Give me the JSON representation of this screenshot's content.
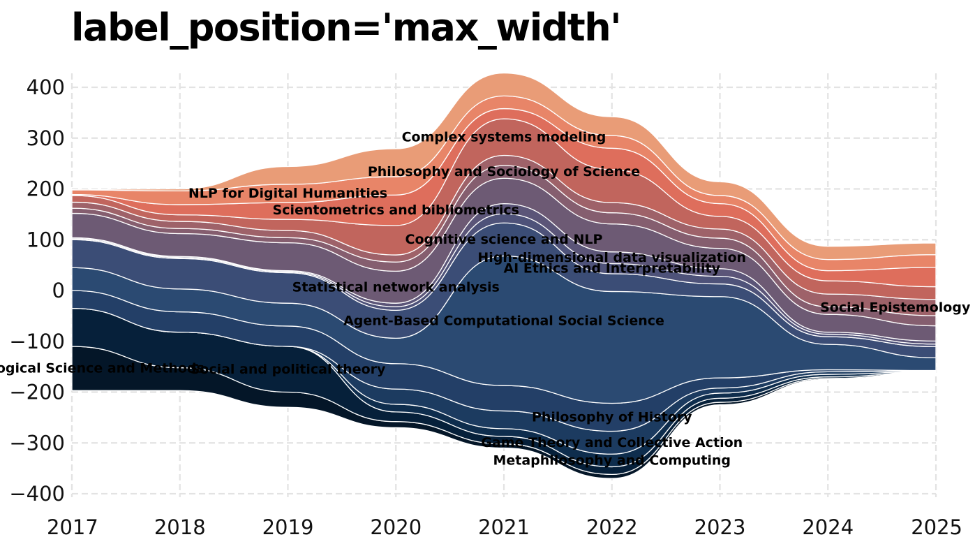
{
  "title": "label_position='max_width'",
  "chart_data": {
    "type": "area",
    "subtype": "streamgraph",
    "title": "label_position='max_width'",
    "x": [
      2017,
      2018,
      2019,
      2020,
      2021,
      2022,
      2023,
      2024,
      2025
    ],
    "xlim": [
      2017,
      2025
    ],
    "ylim": [
      -420,
      420
    ],
    "y_ticks": [
      -400,
      -300,
      -200,
      -100,
      0,
      100,
      200,
      300,
      400
    ],
    "grid": true,
    "grid_style": "dashed",
    "baseline": [
      -197,
      -197,
      -230,
      -270,
      -310,
      -370,
      -225,
      -175,
      -162
    ],
    "series": [
      {
        "name": "Psychological Science and Methods",
        "values": [
          87,
          45,
          30,
          12,
          8,
          8,
          5,
          2,
          1
        ],
        "color": "#041628"
      },
      {
        "name": "Social and political theory",
        "values": [
          75,
          70,
          90,
          19,
          15,
          15,
          8,
          3,
          1
        ],
        "color": "#06203a"
      },
      {
        "name": "Metaphilosophy and Computing",
        "values": [
          0,
          0,
          0,
          15,
          15,
          25,
          10,
          5,
          1
        ],
        "color": "#0e2d4d"
      },
      {
        "name": "Game Theory and Collective Action",
        "values": [
          0,
          0,
          0,
          30,
          35,
          45,
          10,
          5,
          1
        ],
        "color": "#1c3b60"
      },
      {
        "name": "Philosophy of History",
        "values": [
          35,
          40,
          40,
          50,
          50,
          55,
          20,
          4,
          0.5
        ],
        "color": "#233f67"
      },
      {
        "name": "Agent-Based Computational Social Science",
        "values": [
          45,
          45,
          45,
          50,
          255,
          220,
          160,
          50,
          25
        ],
        "color": "#2b4a72"
      },
      {
        "name": "Cognitive science and NLP",
        "values": [
          55,
          60,
          60,
          55,
          65,
          35,
          25,
          15,
          22
        ],
        "color": "#3b4d76"
      },
      {
        "name": "AI Ethics and Interpretability",
        "values": [
          2,
          2,
          2,
          7,
          18,
          20,
          15,
          5,
          5
        ],
        "color": "#4e5279"
      },
      {
        "name": "High-dimensional data visualization",
        "values": [
          2,
          2,
          2,
          7,
          20,
          23,
          15,
          4,
          6
        ],
        "color": "#5b5578"
      },
      {
        "name": "Statistical network analysis",
        "values": [
          48,
          45,
          55,
          63,
          50,
          55,
          40,
          35,
          30
        ],
        "color": "#6d5a74"
      },
      {
        "name": "Philosophy and Sociology of Science",
        "values": [
          10,
          10,
          10,
          18,
          25,
          22,
          20,
          15,
          20
        ],
        "color": "#855e6f"
      },
      {
        "name": "Social Epistemology of Science",
        "values": [
          12,
          14,
          14,
          14,
          20,
          20,
          18,
          25,
          32
        ],
        "color": "#9e6269"
      },
      {
        "name": "Complex systems modeling",
        "values": [
          13,
          13,
          22,
          58,
          72,
          65,
          25,
          26,
          25
        ],
        "color": "#c1655d"
      },
      {
        "name": "Scientometrics and bibliometrics",
        "values": [
          2,
          20,
          33,
          60,
          20,
          42,
          25,
          20,
          38
        ],
        "color": "#de6e5c"
      },
      {
        "name": "NLP for Digital Humanities",
        "values": [
          9,
          27,
          36,
          36,
          25,
          25,
          16,
          22,
          25
        ],
        "color": "#e88568"
      }
    ],
    "top_layer": {
      "values": [
        1,
        4,
        35,
        55,
        45,
        37,
        27,
        26,
        23
      ],
      "color": "#e99c77"
    }
  }
}
